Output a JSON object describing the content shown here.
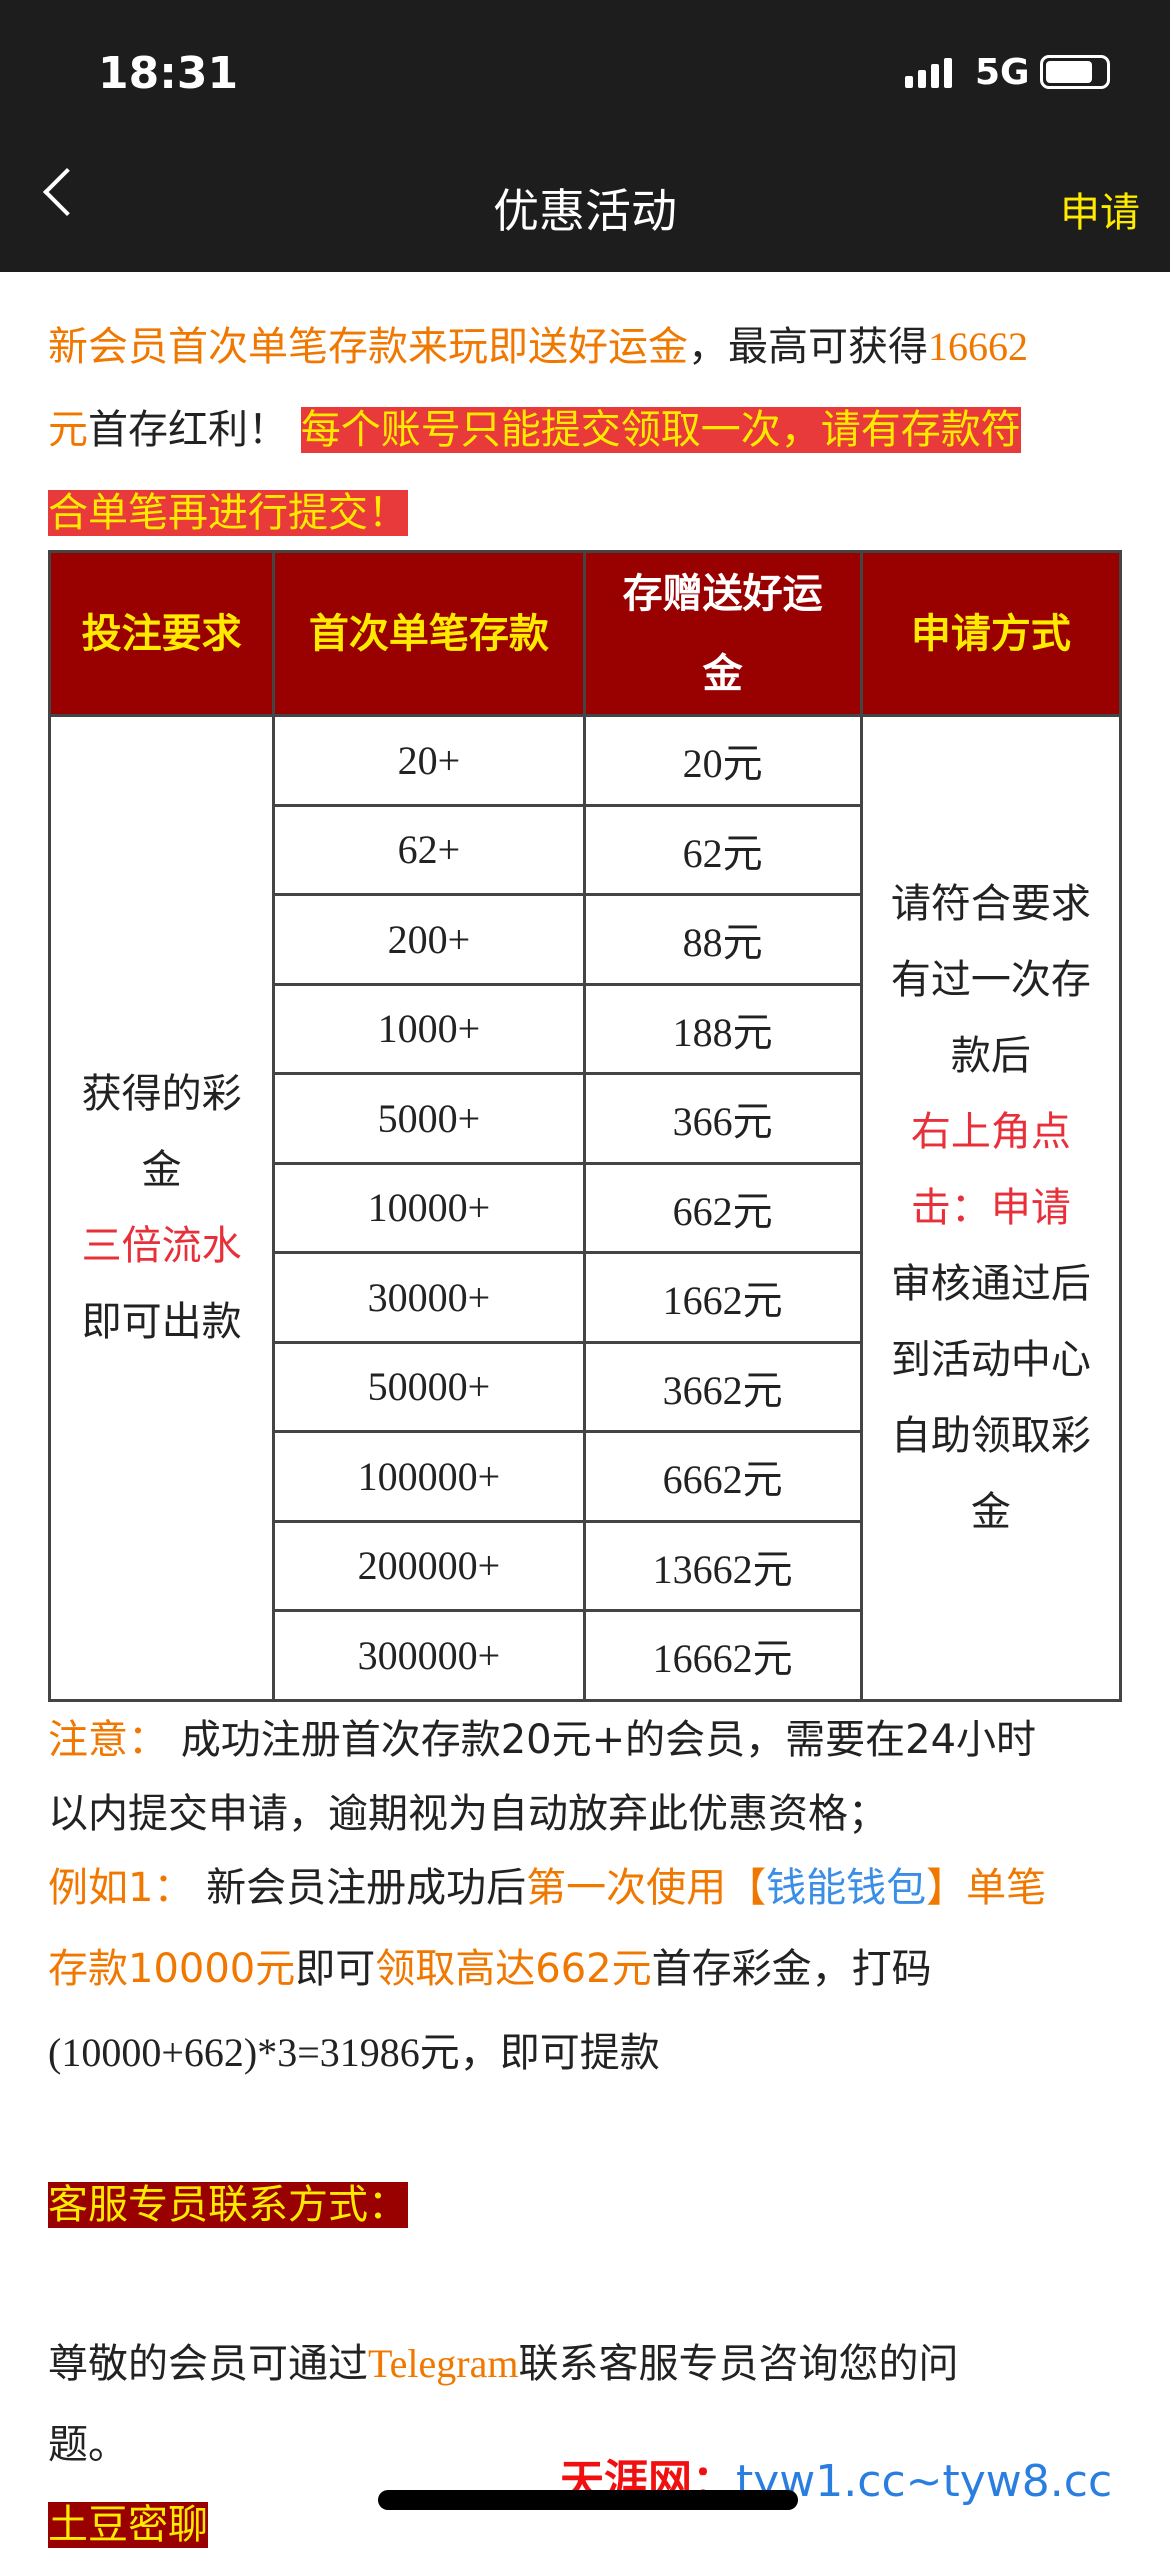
{
  "status": {
    "time": "18:31",
    "network": "5G"
  },
  "nav": {
    "title": "优惠活动",
    "apply": "申请"
  },
  "intro": {
    "a": "新会员首次单笔存款来玩即送好运金",
    "b": "，最高可获得",
    "c": "16662",
    "d": "元",
    "e": "首存红利！",
    "f": "每个账号只能提交领取一次，请有存款符",
    "g": "合单笔再进行提交！"
  },
  "table": {
    "headers": [
      "投注要求",
      "首次单笔存款",
      "存赠送好运金",
      "申请方式"
    ],
    "requirement": {
      "l1": "获得的彩",
      "l2": "金",
      "l3": "三倍流水",
      "l4": "即可出款"
    },
    "rows": [
      [
        "20+",
        "20元"
      ],
      [
        "62+",
        "62元"
      ],
      [
        "200+",
        "88元"
      ],
      [
        "1000+",
        "188元"
      ],
      [
        "5000+",
        "366元"
      ],
      [
        "10000+",
        "662元"
      ],
      [
        "30000+",
        "1662元"
      ],
      [
        "50000+",
        "3662元"
      ],
      [
        "100000+",
        "6662元"
      ],
      [
        "200000+",
        "13662元"
      ],
      [
        "300000+",
        "16662元"
      ]
    ],
    "method": {
      "l1": "请符合要求",
      "l2": "有过一次存",
      "l3": "款后",
      "l4": "右上角点",
      "l5": "击：申请",
      "l6": "审核通过后",
      "l7": "到活动中心",
      "l8": "自助领取彩",
      "l9": "金"
    }
  },
  "note": {
    "label": "注意：",
    "t1": "成功注册首次存款20元+的会员，需要在24小时",
    "t2": "以内提交申请，逾期视为自动放弃此优惠资格；"
  },
  "example": {
    "label": "例如1：",
    "a": "新会员注册成功后",
    "b": "第一次使用",
    "c": "【",
    "d": "钱能钱包",
    "e": "】单笔",
    "f": "存款10000元",
    "g": "即可",
    "h": "领取高达662元",
    "i": "首存彩金，打码",
    "j": "(10000+662)*3=31986元",
    "k": "，即可提款"
  },
  "contact": {
    "heading": "客服专员联系方式：",
    "t1": "尊敬的会员可通过",
    "telegram": "Telegram",
    "t2": "联系客服专员咨询您的问",
    "t3": "题。",
    "next": "土豆密聊"
  },
  "watermark": {
    "a": "天涯网：",
    "b": "tyw1.cc~tyw8.cc"
  }
}
